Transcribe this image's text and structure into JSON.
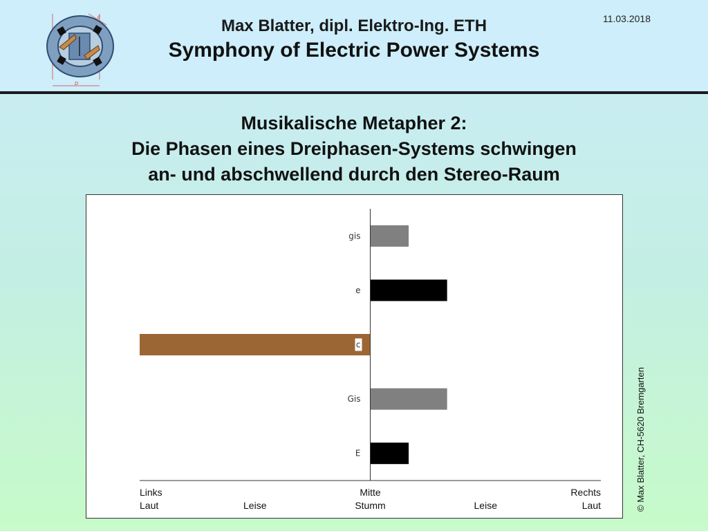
{
  "header": {
    "date": "11.03.2018",
    "author": "Max Blatter, dipl. Elektro-Ing. ETH",
    "title": "Symphony of Electric Power Systems",
    "logo_labels": [
      "c",
      "D"
    ]
  },
  "slide": {
    "title_lines": [
      "Musikalische Metapher 2:",
      "Die Phasen eines Dreiphasen-Systems schwingen",
      "an- und abschwellend durch den Stereo-Raum"
    ]
  },
  "copyright": "© Max Blatter, CH-5620 Bremgarten",
  "chart_data": {
    "type": "bar",
    "orientation": "horizontal",
    "categories": [
      "gis",
      "e",
      "c",
      "Gis",
      "E"
    ],
    "values": [
      1,
      2,
      -6,
      2,
      1
    ],
    "colors": [
      "#808080",
      "#000000",
      "#9c6634",
      "#808080",
      "#000000"
    ],
    "xlim": [
      -6,
      6
    ],
    "axis_labels": {
      "row1": [
        {
          "text": "Links",
          "at": -6,
          "align": "start"
        },
        {
          "text": "Mitte",
          "at": 0,
          "align": "middle"
        },
        {
          "text": "Rechts",
          "at": 6,
          "align": "end"
        }
      ],
      "row2": [
        {
          "text": "Laut",
          "at": -6,
          "align": "start"
        },
        {
          "text": "Leise",
          "at": -3,
          "align": "middle"
        },
        {
          "text": "Stumm",
          "at": 0,
          "align": "middle"
        },
        {
          "text": "Leise",
          "at": 3,
          "align": "middle"
        },
        {
          "text": "Laut",
          "at": 6,
          "align": "end"
        }
      ]
    },
    "grid": false,
    "legend": "none"
  }
}
